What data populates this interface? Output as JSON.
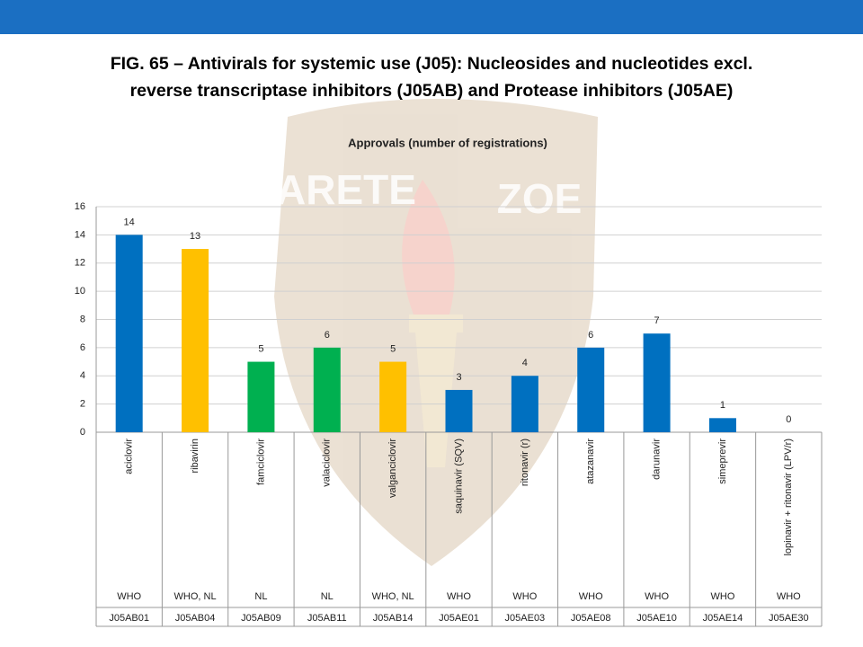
{
  "header": {
    "title_line1": "FIG. 65 – Antivirals for systemic use (J05): Nucleosides and nucleotides excl.",
    "title_line2": "reverse transcriptase inhibitors (J05AB) and Protease inhibitors (J05AE)"
  },
  "watermark": {
    "left": "ARETE",
    "right": "ZOE"
  },
  "chart_data": {
    "type": "bar",
    "title": "Approvals (number of registrations)",
    "categories": [
      "aciclovir",
      "ribavirin",
      "famciclovir",
      "valaciclovir",
      "valganciclovir",
      "saquinavir (SQV)",
      "ritonavir (r)",
      "atazanavir",
      "darunavir",
      "simeprevir",
      "lopinavir + ritonavir (LPV/r)"
    ],
    "sources": [
      "WHO",
      "WHO, NL",
      "NL",
      "NL",
      "WHO, NL",
      "WHO",
      "WHO",
      "WHO",
      "WHO",
      "WHO",
      "WHO"
    ],
    "codes": [
      "J05AB01",
      "J05AB04",
      "J05AB09",
      "J05AB11",
      "J05AB14",
      "J05AE01",
      "J05AE03",
      "J05AE08",
      "J05AE10",
      "J05AE14",
      "J05AE30"
    ],
    "values": [
      14,
      13,
      5,
      6,
      5,
      3,
      4,
      6,
      7,
      1,
      0
    ],
    "colors": [
      "#0070c0",
      "#ffc000",
      "#00b050",
      "#00b050",
      "#ffc000",
      "#0070c0",
      "#0070c0",
      "#0070c0",
      "#0070c0",
      "#0070c0",
      "#0070c0"
    ],
    "ylim": [
      0,
      16
    ],
    "yticks": [
      0,
      2,
      4,
      6,
      8,
      10,
      12,
      14,
      16
    ],
    "grid": true
  }
}
